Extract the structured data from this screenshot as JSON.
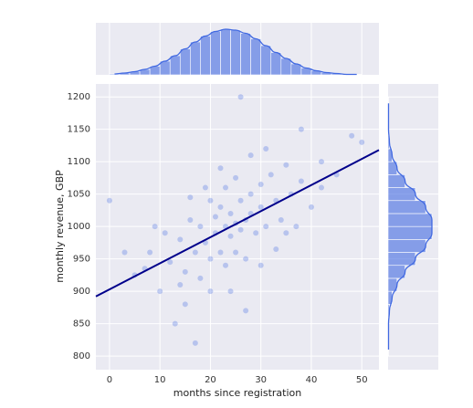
{
  "chart_data": [
    {
      "type": "scatter",
      "xlabel": "months since registration",
      "ylabel": "monthly revenue, GBP",
      "xlim": [
        -2.7,
        53.4
      ],
      "ylim": [
        779,
        1220
      ],
      "xticks": [
        0,
        10,
        20,
        30,
        40,
        50
      ],
      "yticks": [
        800,
        850,
        900,
        950,
        1000,
        1050,
        1100,
        1150,
        1200
      ],
      "grid": true,
      "color": "#4169e1",
      "x": [
        5,
        8,
        10,
        12,
        14,
        15,
        16,
        17,
        18,
        18,
        19,
        20,
        20,
        21,
        21,
        22,
        22,
        23,
        23,
        23,
        24,
        24,
        25,
        25,
        25,
        26,
        26,
        27,
        27,
        28,
        28,
        29,
        30,
        30,
        31,
        32,
        33,
        34,
        35,
        36,
        38,
        40,
        42,
        45,
        48,
        26,
        13,
        17,
        30,
        9,
        3,
        0,
        50,
        15,
        20,
        35,
        38,
        11,
        28,
        24,
        19,
        33,
        22,
        14,
        31,
        7,
        42,
        27,
        16,
        37
      ],
      "y": [
        925,
        960,
        900,
        945,
        980,
        930,
        1010,
        960,
        920,
        1000,
        975,
        1040,
        950,
        990,
        1015,
        960,
        1030,
        1000,
        940,
        1060,
        985,
        1020,
        1005,
        960,
        1075,
        1040,
        995,
        1010,
        950,
        1050,
        1020,
        990,
        1065,
        1030,
        1000,
        1080,
        1040,
        1010,
        1095,
        1050,
        1070,
        1030,
        1100,
        1080,
        1140,
        1200,
        850,
        820,
        940,
        1000,
        960,
        1040,
        1130,
        880,
        900,
        990,
        1150,
        990,
        1110,
        900,
        1060,
        965,
        1090,
        910,
        1120,
        935,
        1060,
        870,
        1045,
        1000
      ],
      "regression": {
        "x": [
          -2.7,
          53.4
        ],
        "y": [
          892,
          1118
        ],
        "color": "#00008b"
      }
    },
    {
      "type": "histogram",
      "orientation": "vertical",
      "color": "#4169e1",
      "bins": [
        0,
        2,
        4,
        6,
        8,
        10,
        12,
        14,
        16,
        18,
        20,
        22,
        24,
        26,
        28,
        30,
        32,
        34,
        36,
        38,
        40,
        42,
        44,
        46,
        48,
        50
      ],
      "counts": [
        2,
        4,
        7,
        12,
        19,
        30,
        42,
        57,
        72,
        85,
        95,
        100,
        98,
        91,
        79,
        64,
        49,
        36,
        24,
        15,
        9,
        5,
        3,
        1,
        1
      ]
    },
    {
      "type": "histogram",
      "orientation": "horizontal",
      "color": "#4169e1",
      "bins": [
        800,
        820,
        840,
        860,
        880,
        900,
        920,
        940,
        960,
        980,
        1000,
        1020,
        1040,
        1060,
        1080,
        1100,
        1120,
        1140,
        1160,
        1180,
        1200
      ],
      "counts": [
        1,
        1,
        1,
        3,
        9,
        20,
        38,
        61,
        84,
        98,
        98,
        84,
        61,
        38,
        20,
        9,
        3,
        1,
        1,
        1
      ]
    }
  ]
}
